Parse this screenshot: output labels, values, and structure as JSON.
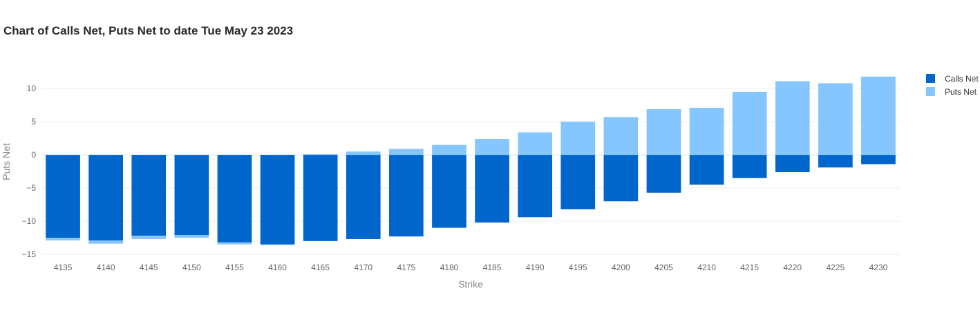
{
  "chart_data": {
    "type": "bar",
    "title": "Chart of Calls Net, Puts Net to date Tue May 23 2023",
    "xlabel": "Strike",
    "ylabel": "Puts Net",
    "categories": [
      "4135",
      "4140",
      "4145",
      "4150",
      "4155",
      "4160",
      "4165",
      "4170",
      "4175",
      "4180",
      "4185",
      "4190",
      "4195",
      "4200",
      "4205",
      "4210",
      "4215",
      "4220",
      "4225",
      "4230"
    ],
    "ylim": [
      -15.1,
      12.2
    ],
    "yticks": [
      10,
      5,
      0,
      -5,
      -10,
      -15
    ],
    "ytick_labels": [
      "10",
      "5",
      "0",
      "−5",
      "−10",
      "−15"
    ],
    "barmode": "relative",
    "grid": true,
    "legend_position": "top-right",
    "series": [
      {
        "name": "Calls Net",
        "color": "#0066cc",
        "values": [
          -12.5,
          -12.9,
          -12.2,
          -12.1,
          -13.2,
          -13.5,
          -13.0,
          -12.7,
          -12.3,
          -11.0,
          -10.2,
          -9.4,
          -8.2,
          -7.0,
          -5.7,
          -4.5,
          -3.5,
          -2.6,
          -1.9,
          -1.4
        ]
      },
      {
        "name": "Puts Net",
        "color": "#85c6fe",
        "values": [
          -0.4,
          -0.5,
          -0.5,
          -0.4,
          -0.3,
          -0.1,
          0.1,
          0.5,
          0.9,
          1.5,
          2.4,
          3.4,
          5.0,
          5.7,
          6.9,
          7.1,
          9.5,
          11.1,
          10.8,
          11.8
        ]
      }
    ]
  }
}
